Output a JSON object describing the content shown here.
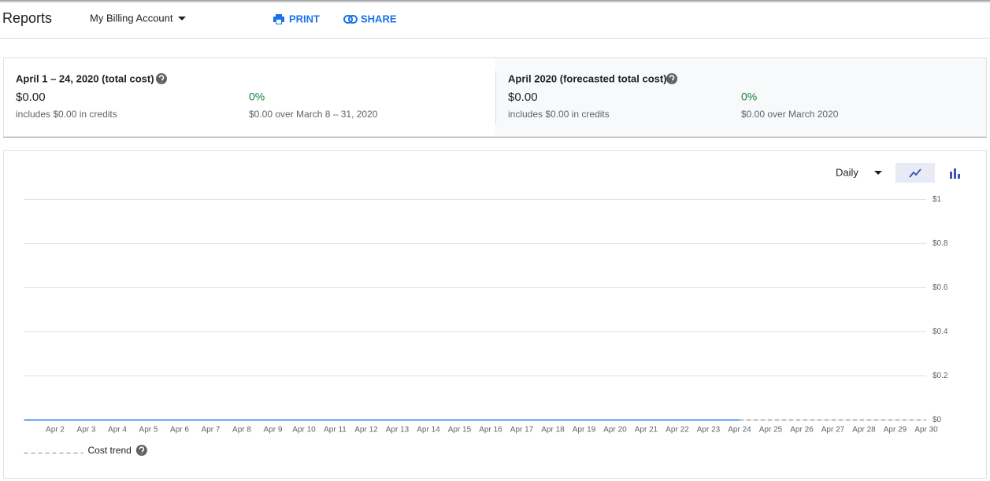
{
  "header": {
    "title": "Reports",
    "account": "My Billing Account",
    "print": "PRINT",
    "share": "SHARE"
  },
  "summary": [
    {
      "title": "April 1 – 24, 2020 (total cost)",
      "amount": "$0.00",
      "credits": "includes $0.00 in credits",
      "change": "0%",
      "comparison": "$0.00 over March 8 – 31, 2020"
    },
    {
      "title": "April 2020 (forecasted total cost)",
      "amount": "$0.00",
      "credits": "includes $0.00 in credits",
      "change": "0%",
      "comparison": "$0.00 over March 2020"
    }
  ],
  "chart_data": {
    "type": "line",
    "period": "Daily",
    "x": [
      null,
      "Apr 2",
      "Apr 3",
      "Apr 4",
      "Apr 5",
      "Apr 6",
      "Apr 7",
      "Apr 8",
      "Apr 9",
      "Apr 10",
      "Apr 11",
      "Apr 12",
      "Apr 13",
      "Apr 14",
      "Apr 15",
      "Apr 16",
      "Apr 17",
      "Apr 18",
      "Apr 19",
      "Apr 20",
      "Apr 21",
      "Apr 22",
      "Apr 23",
      "Apr 24",
      "Apr 25",
      "Apr 26",
      "Apr 27",
      "Apr 28",
      "Apr 29",
      "Apr 30"
    ],
    "series": [
      {
        "color": "#1a73e8",
        "dashed": false,
        "values": [
          0,
          0,
          0,
          0,
          0,
          0,
          0,
          0,
          0,
          0,
          0,
          0,
          0,
          0,
          0,
          0,
          0,
          0,
          0,
          0,
          0,
          0,
          0,
          0,
          null,
          null,
          null,
          null,
          null,
          null
        ]
      },
      {
        "name": "Cost trend",
        "color": "#9e9e9e",
        "dashed": true,
        "values": [
          null,
          null,
          null,
          null,
          null,
          null,
          null,
          null,
          null,
          null,
          null,
          null,
          null,
          null,
          null,
          null,
          null,
          null,
          null,
          null,
          null,
          null,
          null,
          0,
          0,
          0,
          0,
          0,
          0,
          0
        ]
      }
    ],
    "ylim": [
      0,
      1
    ],
    "yticks": [
      {
        "value": 0,
        "label": "$0"
      },
      {
        "value": 0.2,
        "label": "$0.2"
      },
      {
        "value": 0.4,
        "label": "$0.4"
      },
      {
        "value": 0.6,
        "label": "$0.6"
      },
      {
        "value": 0.8,
        "label": "$0.8"
      },
      {
        "value": 1,
        "label": "$1"
      }
    ],
    "grid": true
  }
}
